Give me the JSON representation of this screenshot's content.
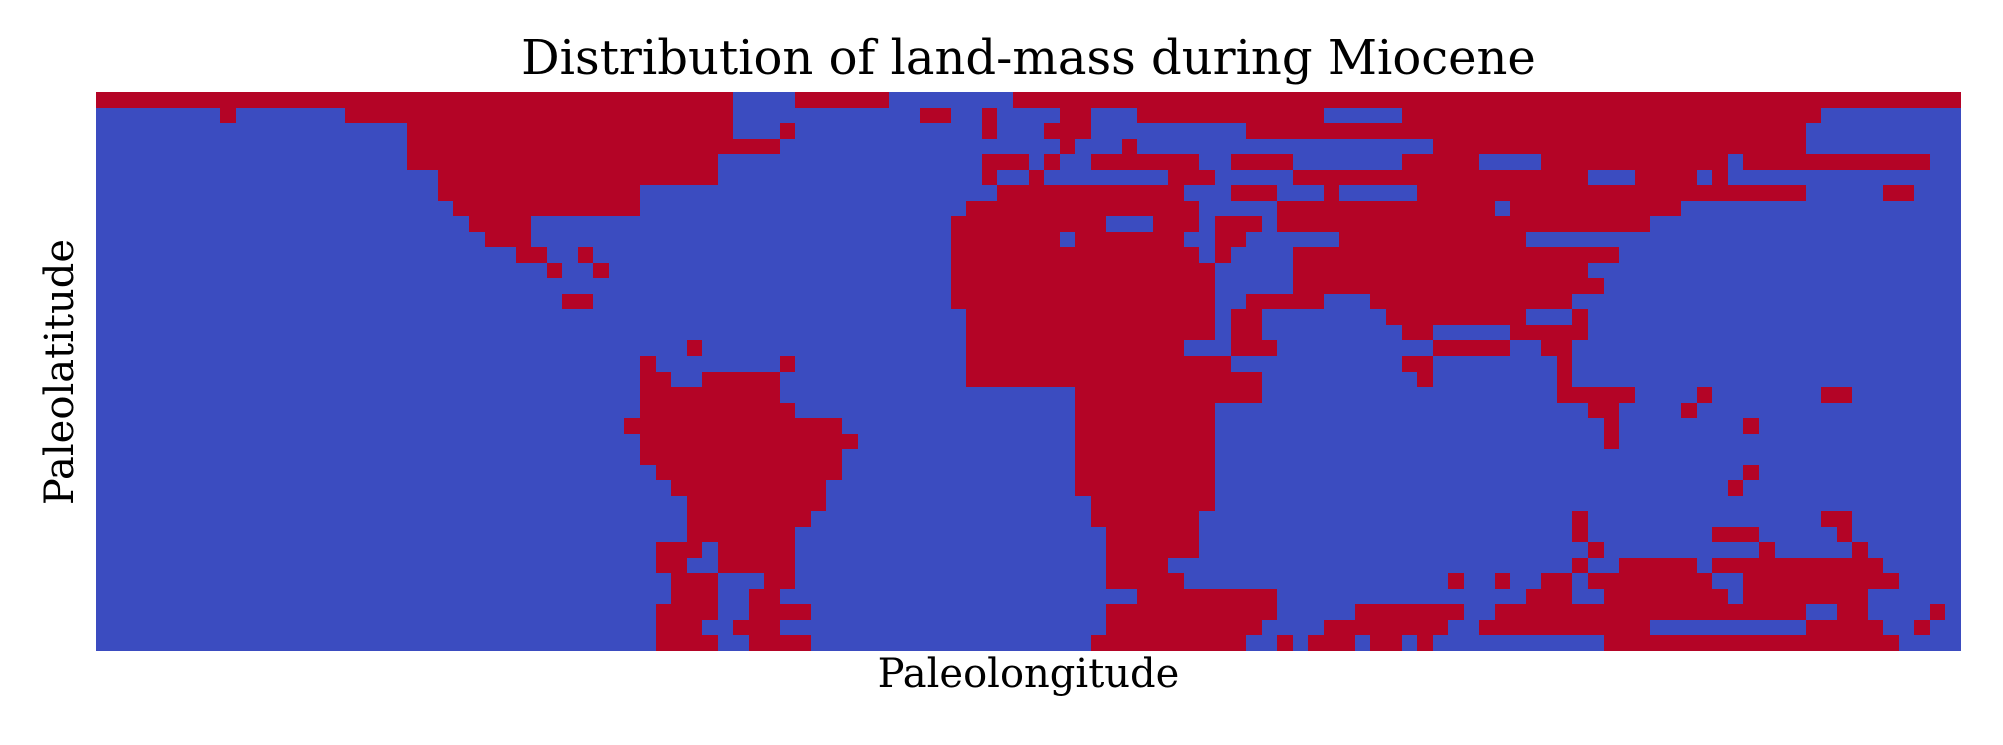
{
  "chart_data": {
    "type": "heatmap",
    "title": "Distribution of land-mass during Miocene",
    "xlabel": "Paleolongitude",
    "ylabel": "Paleolatitude",
    "colors": {
      "land": "#b40426",
      "ocean": "#3b4cc0"
    },
    "grid": false,
    "legend": "none",
    "grid_size": {
      "cols": 120,
      "rows": 36
    },
    "land_runs": [
      [
        [
          0,
          41
        ],
        [
          45,
          51
        ],
        [
          59,
          120
        ]
      ],
      [
        [
          8,
          9
        ],
        [
          16,
          41
        ],
        [
          53,
          55
        ],
        [
          57,
          58
        ],
        [
          62,
          64
        ],
        [
          67,
          79
        ],
        [
          84,
          111
        ]
      ],
      [
        [
          20,
          41
        ],
        [
          44,
          45
        ],
        [
          57,
          58
        ],
        [
          61,
          64
        ],
        [
          74,
          110
        ]
      ],
      [
        [
          20,
          44
        ],
        [
          62,
          63
        ],
        [
          66,
          67
        ],
        [
          86,
          110
        ]
      ],
      [
        [
          20,
          40
        ],
        [
          57,
          60
        ],
        [
          61,
          62
        ],
        [
          64,
          71
        ],
        [
          73,
          77
        ],
        [
          84,
          89
        ],
        [
          93,
          105
        ],
        [
          106,
          118
        ]
      ],
      [
        [
          22,
          40
        ],
        [
          57,
          58
        ],
        [
          60,
          61
        ],
        [
          69,
          72
        ],
        [
          77,
          96
        ],
        [
          99,
          103
        ],
        [
          104,
          105
        ]
      ],
      [
        [
          22,
          35
        ],
        [
          58,
          70
        ],
        [
          73,
          76
        ],
        [
          79,
          80
        ],
        [
          85,
          110
        ],
        [
          115,
          117
        ]
      ],
      [
        [
          23,
          35
        ],
        [
          56,
          71
        ],
        [
          76,
          90
        ],
        [
          91,
          102
        ]
      ],
      [
        [
          24,
          28
        ],
        [
          55,
          65
        ],
        [
          68,
          71
        ],
        [
          72,
          75
        ],
        [
          76,
          100
        ]
      ],
      [
        [
          25,
          28
        ],
        [
          55,
          62
        ],
        [
          63,
          70
        ],
        [
          72,
          74
        ],
        [
          80,
          92
        ]
      ],
      [
        [
          27,
          29
        ],
        [
          31,
          32
        ],
        [
          55,
          71
        ],
        [
          72,
          73
        ],
        [
          77,
          98
        ]
      ],
      [
        [
          29,
          30
        ],
        [
          32,
          33
        ],
        [
          55,
          72
        ],
        [
          77,
          96
        ]
      ],
      [
        [
          55,
          72
        ],
        [
          77,
          97
        ]
      ],
      [
        [
          30,
          32
        ],
        [
          55,
          72
        ],
        [
          74,
          79
        ],
        [
          82,
          95
        ]
      ],
      [
        [
          56,
          72
        ],
        [
          73,
          75
        ],
        [
          83,
          92
        ],
        [
          95,
          96
        ]
      ],
      [
        [
          56,
          72
        ],
        [
          73,
          75
        ],
        [
          84,
          86
        ],
        [
          91,
          96
        ]
      ],
      [
        [
          38,
          39
        ],
        [
          56,
          70
        ],
        [
          73,
          76
        ],
        [
          86,
          91
        ],
        [
          93,
          95
        ]
      ],
      [
        [
          35,
          36
        ],
        [
          44,
          45
        ],
        [
          56,
          73
        ],
        [
          84,
          86
        ],
        [
          94,
          95
        ]
      ],
      [
        [
          35,
          37
        ],
        [
          39,
          44
        ],
        [
          56,
          75
        ],
        [
          85,
          86
        ],
        [
          94,
          95
        ]
      ],
      [
        [
          35,
          44
        ],
        [
          63,
          75
        ],
        [
          94,
          99
        ],
        [
          103,
          104
        ],
        [
          111,
          113
        ]
      ],
      [
        [
          35,
          45
        ],
        [
          63,
          72
        ],
        [
          96,
          98
        ],
        [
          102,
          103
        ]
      ],
      [
        [
          34,
          48
        ],
        [
          63,
          72
        ],
        [
          97,
          98
        ],
        [
          106,
          107
        ]
      ],
      [
        [
          35,
          49
        ],
        [
          63,
          72
        ],
        [
          97,
          98
        ]
      ],
      [
        [
          35,
          48
        ],
        [
          63,
          72
        ]
      ],
      [
        [
          36,
          48
        ],
        [
          63,
          72
        ],
        [
          106,
          107
        ]
      ],
      [
        [
          37,
          47
        ],
        [
          63,
          72
        ],
        [
          105,
          106
        ]
      ],
      [
        [
          38,
          47
        ],
        [
          64,
          72
        ]
      ],
      [
        [
          38,
          46
        ],
        [
          64,
          71
        ],
        [
          95,
          96
        ],
        [
          111,
          113
        ]
      ],
      [
        [
          38,
          45
        ],
        [
          65,
          71
        ],
        [
          95,
          96
        ],
        [
          104,
          107
        ],
        [
          112,
          113
        ]
      ],
      [
        [
          36,
          39
        ],
        [
          40,
          45
        ],
        [
          65,
          71
        ],
        [
          96,
          97
        ],
        [
          107,
          108
        ],
        [
          113,
          114
        ]
      ],
      [
        [
          36,
          38
        ],
        [
          40,
          45
        ],
        [
          65,
          69
        ],
        [
          95,
          96
        ],
        [
          98,
          103
        ],
        [
          104,
          115
        ]
      ],
      [
        [
          37,
          40
        ],
        [
          43,
          45
        ],
        [
          65,
          70
        ],
        [
          87,
          88
        ],
        [
          90,
          91
        ],
        [
          93,
          95
        ],
        [
          96,
          104
        ],
        [
          106,
          116
        ]
      ],
      [
        [
          37,
          40
        ],
        [
          42,
          44
        ],
        [
          67,
          76
        ],
        [
          92,
          95
        ],
        [
          97,
          105
        ],
        [
          106,
          114
        ]
      ],
      [
        [
          36,
          40
        ],
        [
          42,
          46
        ],
        [
          65,
          76
        ],
        [
          81,
          88
        ],
        [
          90,
          110
        ],
        [
          112,
          114
        ],
        [
          118,
          119
        ]
      ],
      [
        [
          36,
          39
        ],
        [
          41,
          44
        ],
        [
          65,
          75
        ],
        [
          79,
          87
        ],
        [
          89,
          100
        ],
        [
          110,
          115
        ],
        [
          117,
          118
        ]
      ],
      [
        [
          36,
          40
        ],
        [
          42,
          46
        ],
        [
          64,
          74
        ],
        [
          76,
          77
        ],
        [
          78,
          81
        ],
        [
          82,
          84
        ],
        [
          85,
          86
        ],
        [
          97,
          116
        ]
      ]
    ]
  }
}
